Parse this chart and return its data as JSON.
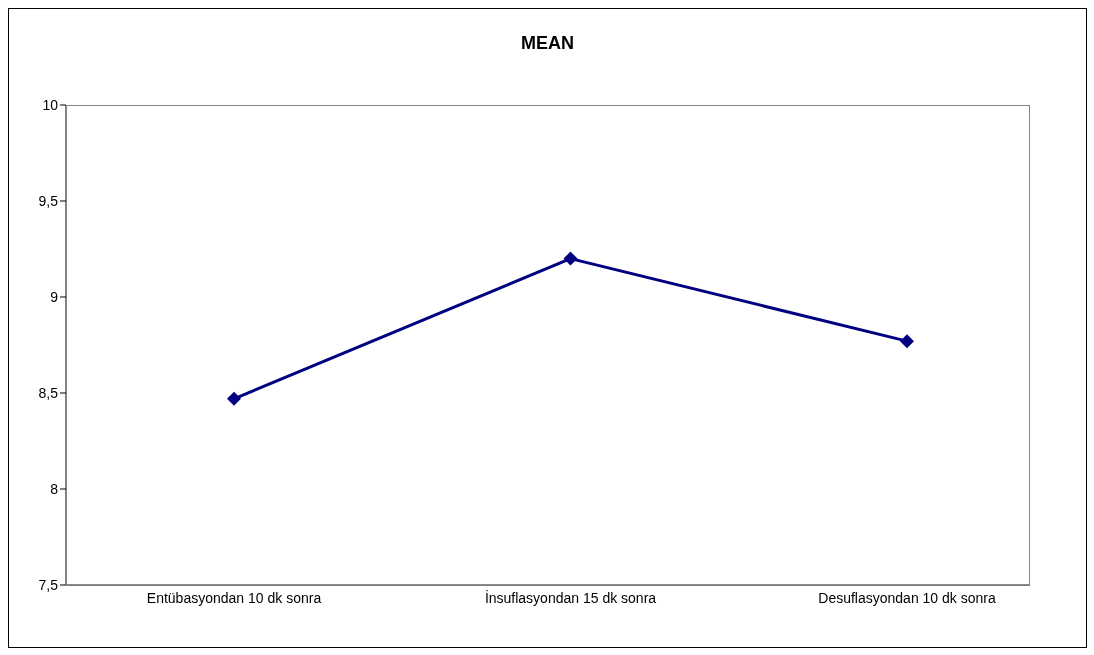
{
  "chart_data": {
    "type": "line",
    "title": "MEAN",
    "categories": [
      "Entübasyondan 10 dk sonra",
      "İnsuflasyondan 15 dk sonra",
      "Desuflasyondan 10 dk sonra"
    ],
    "series": [
      {
        "color": "#000080",
        "values": [
          8.47,
          9.2,
          8.77
        ]
      }
    ],
    "ylim": [
      7.5,
      10
    ],
    "yticks": [
      {
        "value": 7.5,
        "label": "7,5"
      },
      8,
      {
        "value": 8.5,
        "label": "8,5"
      },
      9,
      {
        "value": 9.5,
        "label": "9,5"
      },
      10
    ],
    "grid": false,
    "legend": false,
    "marker": "diamond",
    "line_style": "solid"
  }
}
